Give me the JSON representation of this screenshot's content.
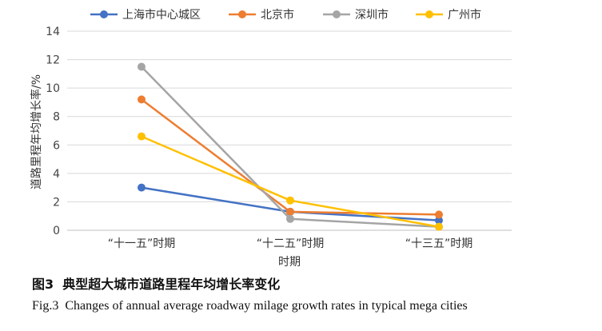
{
  "chart_data": {
    "type": "line",
    "categories": [
      "“十一五”时期",
      "“十二五”时期",
      "“十三五”时期"
    ],
    "series": [
      {
        "name": "上海市中心城区",
        "values": [
          3.0,
          1.3,
          0.7
        ],
        "color": "#4472C4"
      },
      {
        "name": "北京市",
        "values": [
          9.2,
          1.3,
          1.1
        ],
        "color": "#ED7D31"
      },
      {
        "name": "深圳市",
        "values": [
          11.5,
          0.8,
          0.25
        ],
        "color": "#A5A5A5"
      },
      {
        "name": "广州市",
        "values": [
          6.6,
          2.1,
          0.25
        ],
        "color": "#FFC000"
      }
    ],
    "yticks": [
      0,
      2,
      4,
      6,
      8,
      10,
      12,
      14
    ],
    "ylim": [
      0,
      14
    ],
    "xlabel": "时期",
    "ylabel": "道路里程年均增长率/%",
    "grid": true,
    "legend": "top"
  },
  "caption": {
    "figure_num_cn": "图3",
    "title_cn": "典型超大城市道路里程年均增长率变化",
    "figure_num_en": "Fig.3",
    "title_en": "Changes of annual average roadway milage growth rates in typical mega cities"
  }
}
